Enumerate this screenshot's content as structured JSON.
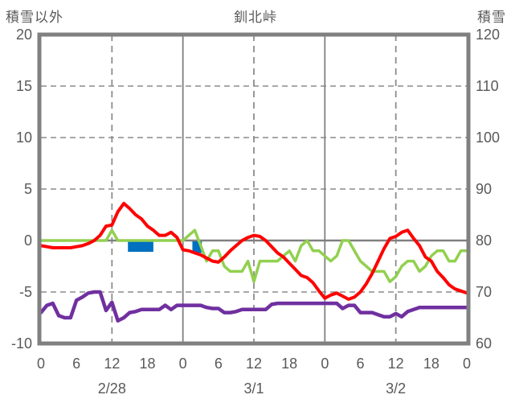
{
  "header": {
    "left_axis_title": "積雪以外",
    "chart_title": "釧北峠",
    "right_axis_title": "積雪"
  },
  "colors": {
    "temperature_red": "#FF0000",
    "snow_depth_green": "#92D050",
    "purple_line": "#7030A0",
    "snowfall_bar_blue": "#0070C0",
    "frame_gray": "#808080",
    "grid_dash_gray": "#8C8C8C",
    "text_gray": "#595959",
    "background": "#FFFFFF"
  },
  "chart_data": {
    "type": "line",
    "title": "釧北峠",
    "station": "釧北峠",
    "x_axis": {
      "range_hours": [
        0,
        72
      ],
      "tick_hours": [
        0,
        6,
        12,
        18,
        24,
        30,
        36,
        42,
        48,
        54,
        60,
        66,
        72
      ],
      "tick_labels": [
        "0",
        "6",
        "12",
        "18",
        "0",
        "6",
        "12",
        "18",
        "0",
        "6",
        "12",
        "18",
        "0"
      ],
      "date_labels": [
        {
          "label": "2/28",
          "hour": 12
        },
        {
          "label": "3/1",
          "hour": 36
        },
        {
          "label": "3/2",
          "hour": 60
        }
      ]
    },
    "left_axis": {
      "title": "積雪以外",
      "min": -10,
      "max": 20,
      "ticks": [
        20,
        15,
        10,
        5,
        0,
        -5,
        -10
      ]
    },
    "right_axis": {
      "title": "積雪",
      "min": 60,
      "max": 120,
      "ticks": [
        120,
        110,
        100,
        90,
        80,
        70,
        60
      ]
    },
    "grid": {
      "h_dashed_left_values": [
        15,
        10,
        5,
        -5
      ],
      "h_solid_left_values": [
        0
      ],
      "v_solid_hours": [
        24,
        48
      ],
      "v_dashed_hours": [
        12,
        36,
        60
      ]
    },
    "series": [
      {
        "name": "red-line",
        "color": "#FF0000",
        "axis": "left",
        "width": 4,
        "values": [
          -0.5,
          -0.6,
          -0.7,
          -0.7,
          -0.7,
          -0.7,
          -0.6,
          -0.5,
          -0.3,
          0,
          0.5,
          1.4,
          1.5,
          2.8,
          3.6,
          3.1,
          2.5,
          2.1,
          1.4,
          1.0,
          0.5,
          0.5,
          0.8,
          0.3,
          -0.9,
          -1.0,
          -1.2,
          -1.4,
          -1.7,
          -2.0,
          -2.1,
          -1.6,
          -1.0,
          -0.5,
          0,
          0.3,
          0.5,
          0.4,
          0,
          -0.6,
          -1.2,
          -1.6,
          -2.2,
          -2.8,
          -3.4,
          -3.6,
          -4.1,
          -4.9,
          -5.6,
          -5.3,
          -5.1,
          -5.4,
          -5.7,
          -5.5,
          -5.0,
          -4.2,
          -3.2,
          -2.0,
          -0.8,
          0.2,
          0.4,
          0.8,
          1.0,
          0.2,
          -0.5,
          -1.6,
          -2.0,
          -3.0,
          -3.6,
          -4.3,
          -4.7,
          -4.9,
          -5.1
        ]
      },
      {
        "name": "green-line",
        "color": "#92D050",
        "axis": "right",
        "width": 3.5,
        "values": [
          80,
          80,
          80,
          80,
          80,
          80,
          80,
          80,
          80,
          80,
          80,
          80,
          82,
          80,
          80,
          80,
          80,
          80,
          80,
          80,
          80,
          80,
          80,
          80,
          80,
          81,
          82,
          79,
          76,
          78,
          78,
          75,
          74,
          74,
          74,
          76,
          72,
          76,
          76,
          76,
          76,
          77,
          78,
          76,
          79,
          80,
          78,
          78,
          77,
          76,
          77,
          80,
          80,
          78,
          76,
          75,
          74,
          74,
          74,
          72,
          73,
          75,
          76,
          76,
          74,
          75,
          77,
          78,
          78,
          76,
          76,
          78,
          78
        ]
      },
      {
        "name": "purple-line",
        "color": "#7030A0",
        "axis": "left",
        "width": 4.5,
        "values": [
          -7.0,
          -6.3,
          -6.1,
          -7.3,
          -7.5,
          -7.5,
          -5.8,
          -5.5,
          -5.1,
          -5.0,
          -5.0,
          -6.8,
          -6.0,
          -7.8,
          -7.5,
          -7.0,
          -6.9,
          -6.7,
          -6.7,
          -6.7,
          -6.7,
          -6.3,
          -6.7,
          -6.3,
          -6.3,
          -6.3,
          -6.3,
          -6.3,
          -6.5,
          -6.6,
          -6.6,
          -7.0,
          -7.0,
          -6.9,
          -6.7,
          -6.7,
          -6.7,
          -6.7,
          -6.7,
          -6.2,
          -6.1,
          -6.1,
          -6.1,
          -6.1,
          -6.1,
          -6.1,
          -6.1,
          -6.1,
          -6.1,
          -6.1,
          -6.1,
          -6.6,
          -6.3,
          -6.3,
          -7.0,
          -7.0,
          -7.0,
          -7.2,
          -7.4,
          -7.4,
          -7.1,
          -7.4,
          -6.9,
          -6.7,
          -6.5,
          -6.5,
          -6.5,
          -6.5,
          -6.5,
          -6.5,
          -6.5,
          -6.5,
          -6.5
        ]
      }
    ],
    "bars": [
      {
        "name": "blue-bar-1",
        "color": "#0070C0",
        "axis": "left",
        "start_hour": 14.7,
        "end_hour": 19.0,
        "top": 0,
        "bottom": -1.1
      },
      {
        "name": "blue-bar-2",
        "color": "#0070C0",
        "axis": "left",
        "start_hour": 25.6,
        "end_hour": 27.2,
        "top": 0,
        "bottom": -1.2
      }
    ]
  }
}
